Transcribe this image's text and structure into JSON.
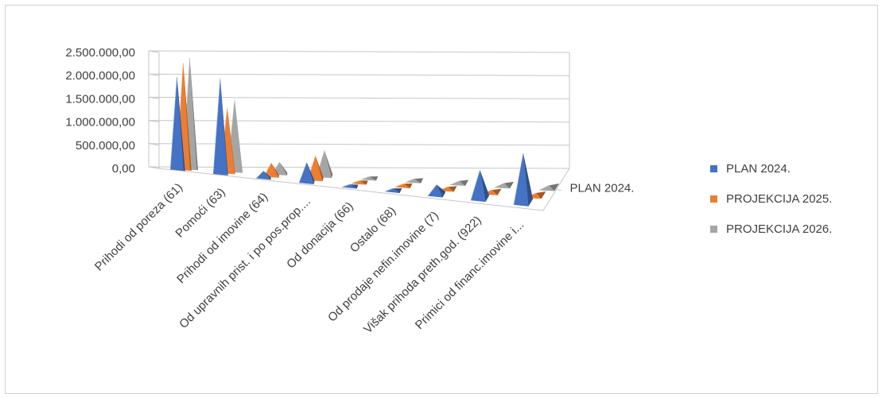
{
  "chart_data": {
    "type": "bar",
    "subtype": "3d-pyramid",
    "categories": [
      "Prihodi od poreza (61)",
      "Pomoći (63)",
      "Prihodi od imovine (64)",
      "Od upravnih prist. i po pos.prop....",
      "Od donacija (66)",
      "Ostalo (68)",
      "Od prodaje nefin.imovine (7)",
      "Višak prihoda preth.god. (922)",
      "Primici od financ.imovine i..."
    ],
    "series": [
      {
        "name": "PLAN 2024.",
        "color": "#4472C4",
        "values": [
          2000000,
          2050000,
          150000,
          420000,
          30000,
          30000,
          200000,
          600000,
          1050000
        ]
      },
      {
        "name": "PROJEKCIJA 2025.",
        "color": "#ED7D31",
        "values": [
          2300000,
          1400000,
          280000,
          500000,
          20000,
          20000,
          20000,
          20000,
          20000
        ]
      },
      {
        "name": "PROJEKCIJA 2026.",
        "color": "#A5A5A5",
        "values": [
          2400000,
          1550000,
          250000,
          550000,
          20000,
          20000,
          20000,
          20000,
          20000
        ]
      }
    ],
    "y_ticks": [
      "0,00",
      "500.000,00",
      "1.000.000,00",
      "1.500.000,00",
      "2.000.000,00",
      "2.500.000,00"
    ],
    "ylim": [
      0,
      2500000
    ],
    "depth_label": "PLAN 2024.",
    "legend_position": "right",
    "grid": true
  }
}
